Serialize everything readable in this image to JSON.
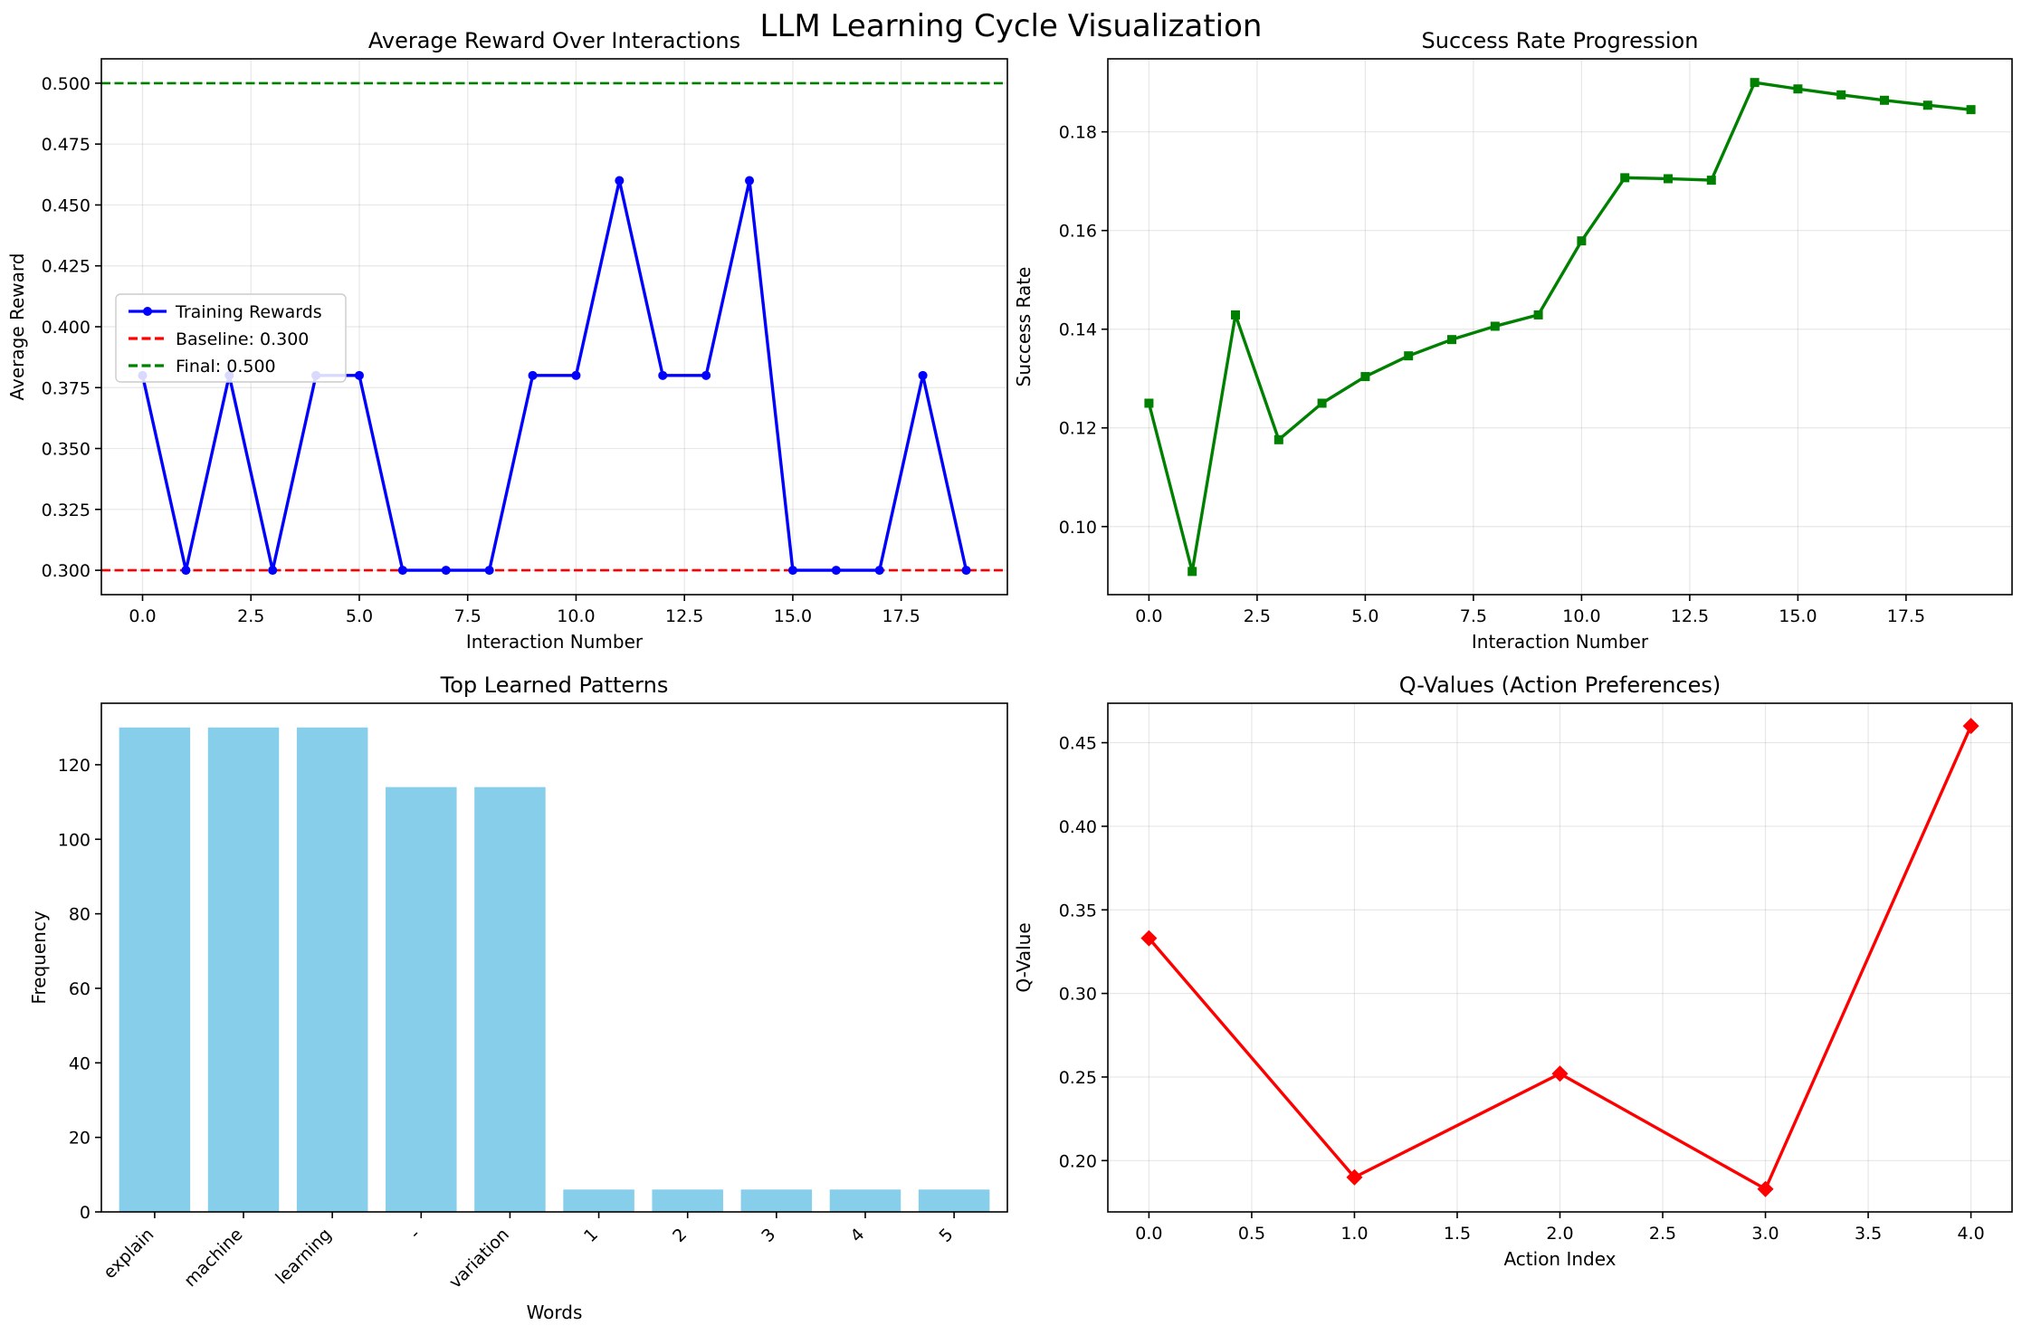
{
  "figure": {
    "title": "LLM Learning Cycle Visualization"
  },
  "chart_data": [
    {
      "type": "line",
      "title": "Average Reward Over Interactions",
      "xlabel": "Interaction Number",
      "ylabel": "Average Reward",
      "xlim": [
        -0.95,
        19.95
      ],
      "ylim": [
        0.29,
        0.51
      ],
      "xticks": [
        0.0,
        2.5,
        5.0,
        7.5,
        10.0,
        12.5,
        15.0,
        17.5
      ],
      "xtick_labels": [
        "0.0",
        "2.5",
        "5.0",
        "7.5",
        "10.0",
        "12.5",
        "15.0",
        "17.5"
      ],
      "yticks": [
        0.3,
        0.325,
        0.35,
        0.375,
        0.4,
        0.425,
        0.45,
        0.475,
        0.5
      ],
      "ytick_labels": [
        "0.300",
        "0.325",
        "0.350",
        "0.375",
        "0.400",
        "0.425",
        "0.450",
        "0.475",
        "0.500"
      ],
      "grid": true,
      "legend": "center-left",
      "series": [
        {
          "name": "Training Rewards",
          "color": "#0000ff",
          "marker": "circle",
          "x": [
            0,
            1,
            2,
            3,
            4,
            5,
            6,
            7,
            8,
            9,
            10,
            11,
            12,
            13,
            14,
            15,
            16,
            17,
            18,
            19
          ],
          "values": [
            0.38,
            0.3,
            0.38,
            0.3,
            0.38,
            0.38,
            0.3,
            0.3,
            0.3,
            0.38,
            0.38,
            0.46,
            0.38,
            0.38,
            0.46,
            0.3,
            0.3,
            0.3,
            0.38,
            0.3
          ]
        }
      ],
      "hlines": [
        {
          "name": "Baseline: 0.300",
          "y": 0.3,
          "color": "#ff0000"
        },
        {
          "name": "Final: 0.500",
          "y": 0.5,
          "color": "#008000"
        }
      ]
    },
    {
      "type": "line",
      "title": "Success Rate Progression",
      "xlabel": "Interaction Number",
      "ylabel": "Success Rate",
      "xlim": [
        -0.95,
        19.95
      ],
      "ylim": [
        0.0862,
        0.1948
      ],
      "xticks": [
        0.0,
        2.5,
        5.0,
        7.5,
        10.0,
        12.5,
        15.0,
        17.5
      ],
      "xtick_labels": [
        "0.0",
        "2.5",
        "5.0",
        "7.5",
        "10.0",
        "12.5",
        "15.0",
        "17.5"
      ],
      "yticks": [
        0.1,
        0.12,
        0.14,
        0.16,
        0.18
      ],
      "ytick_labels": [
        "0.10",
        "0.12",
        "0.14",
        "0.16",
        "0.18"
      ],
      "grid": true,
      "series": [
        {
          "color": "#008000",
          "marker": "square",
          "x": [
            0,
            1,
            2,
            3,
            4,
            5,
            6,
            7,
            8,
            9,
            10,
            11,
            12,
            13,
            14,
            15,
            16,
            17,
            18,
            19
          ],
          "values": [
            0.125,
            0.0909,
            0.1429,
            0.1176,
            0.125,
            0.1304,
            0.1346,
            0.1379,
            0.1406,
            0.1429,
            0.1579,
            0.1707,
            0.1705,
            0.1702,
            0.19,
            0.1887,
            0.1875,
            0.1864,
            0.1854,
            0.1845
          ]
        }
      ]
    },
    {
      "type": "bar",
      "title": "Top Learned Patterns",
      "xlabel": "Words",
      "ylabel": "Frequency",
      "ylim": [
        0,
        136.5
      ],
      "categories": [
        "explain",
        "machine",
        "learning",
        "-",
        "variation",
        "1",
        "2",
        "3",
        "4",
        "5"
      ],
      "values": [
        130,
        130,
        130,
        114,
        114,
        6,
        6,
        6,
        6,
        6
      ],
      "yticks": [
        0,
        20,
        40,
        60,
        80,
        100,
        120
      ],
      "ytick_labels": [
        "0",
        "20",
        "40",
        "60",
        "80",
        "100",
        "120"
      ],
      "bar_color": "#87ceeb",
      "grid": false
    },
    {
      "type": "line",
      "title": "Q-Values (Action Preferences)",
      "xlabel": "Action Index",
      "ylabel": "Q-Value",
      "xlim": [
        -0.2,
        4.2
      ],
      "ylim": [
        0.1693,
        0.4736
      ],
      "xticks": [
        0.0,
        0.5,
        1.0,
        1.5,
        2.0,
        2.5,
        3.0,
        3.5,
        4.0
      ],
      "xtick_labels": [
        "0.0",
        "0.5",
        "1.0",
        "1.5",
        "2.0",
        "2.5",
        "3.0",
        "3.5",
        "4.0"
      ],
      "yticks": [
        0.2,
        0.25,
        0.3,
        0.35,
        0.4,
        0.45
      ],
      "ytick_labels": [
        "0.20",
        "0.25",
        "0.30",
        "0.35",
        "0.40",
        "0.45"
      ],
      "grid": true,
      "series": [
        {
          "color": "#ff0000",
          "marker": "diamond",
          "x": [
            0,
            1,
            2,
            3,
            4
          ],
          "values": [
            0.333,
            0.19,
            0.252,
            0.183,
            0.46
          ]
        }
      ]
    }
  ]
}
